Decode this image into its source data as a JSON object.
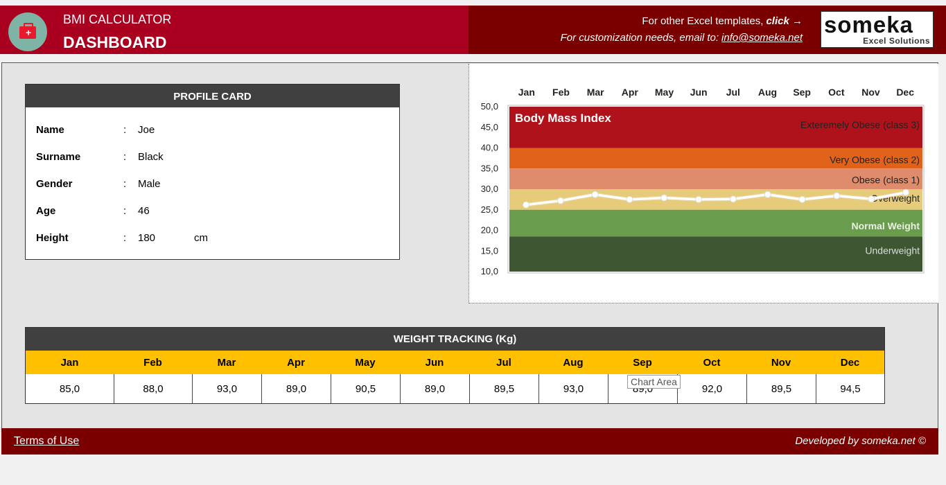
{
  "header": {
    "app_title": "BMI CALCULATOR",
    "page_title": "DASHBOARD",
    "templates_text": "For other Excel templates,",
    "templates_link": "click →",
    "customization_text": "For customization needs, email to:",
    "email": "info@someka.net",
    "logo_main": "someka",
    "logo_sub": "Excel Solutions"
  },
  "profile": {
    "title": "PROFILE CARD",
    "rows": [
      {
        "label": "Name",
        "value": "Joe",
        "unit": ""
      },
      {
        "label": "Surname",
        "value": "Black",
        "unit": ""
      },
      {
        "label": "Gender",
        "value": "Male",
        "unit": ""
      },
      {
        "label": "Age",
        "value": "46",
        "unit": ""
      },
      {
        "label": "Height",
        "value": "180",
        "unit": "cm"
      }
    ]
  },
  "weight_tracking": {
    "title": "WEIGHT TRACKING (Kg)",
    "months": [
      "Jan",
      "Feb",
      "Mar",
      "Apr",
      "May",
      "Jun",
      "Jul",
      "Aug",
      "Sep",
      "Oct",
      "Nov",
      "Dec"
    ],
    "values": [
      "85,0",
      "88,0",
      "93,0",
      "89,0",
      "90,5",
      "89,0",
      "89,5",
      "93,0",
      "89,0",
      "92,0",
      "89,5",
      "94,5"
    ]
  },
  "tooltip": "Chart Area",
  "footer": {
    "terms": "Terms of Use",
    "developed": "Developed by someka.net ©"
  },
  "colors": {
    "header_red": "#a8001e",
    "header_dark": "#7a0000",
    "card_header": "#404040",
    "month_bar": "#ffc000"
  },
  "chart_data": {
    "type": "line",
    "title": "Body Mass Index",
    "categories": [
      "Jan",
      "Feb",
      "Mar",
      "Apr",
      "May",
      "Jun",
      "Jul",
      "Aug",
      "Sep",
      "Oct",
      "Nov",
      "Dec"
    ],
    "series": [
      {
        "values": [
          26.2,
          27.2,
          28.7,
          27.5,
          27.9,
          27.5,
          27.6,
          28.7,
          27.5,
          28.4,
          27.6,
          29.2
        ]
      }
    ],
    "ylim": [
      10,
      50
    ],
    "y_ticks": [
      "10,0",
      "15,0",
      "20,0",
      "25,0",
      "30,0",
      "35,0",
      "40,0",
      "45,0",
      "50,0"
    ],
    "x_axis_position": "top",
    "bands": [
      {
        "label": "Exteremely Obese (class 3)",
        "from": 40,
        "to": 50,
        "color": "#b0121b"
      },
      {
        "label": "Very Obese (class 2)",
        "from": 35,
        "to": 40,
        "color": "#e0621b"
      },
      {
        "label": "Obese (class 1)",
        "from": 30,
        "to": 35,
        "color": "#de8c6b"
      },
      {
        "label": "Overweight",
        "from": 25,
        "to": 30,
        "color": "#e6cc7a"
      },
      {
        "label": "Normal Weight",
        "from": 18.5,
        "to": 25,
        "color": "#6a9c4e"
      },
      {
        "label": "Underweight",
        "from": 10,
        "to": 18.5,
        "color": "#3e5632"
      }
    ],
    "line_color": "#ffffff"
  }
}
